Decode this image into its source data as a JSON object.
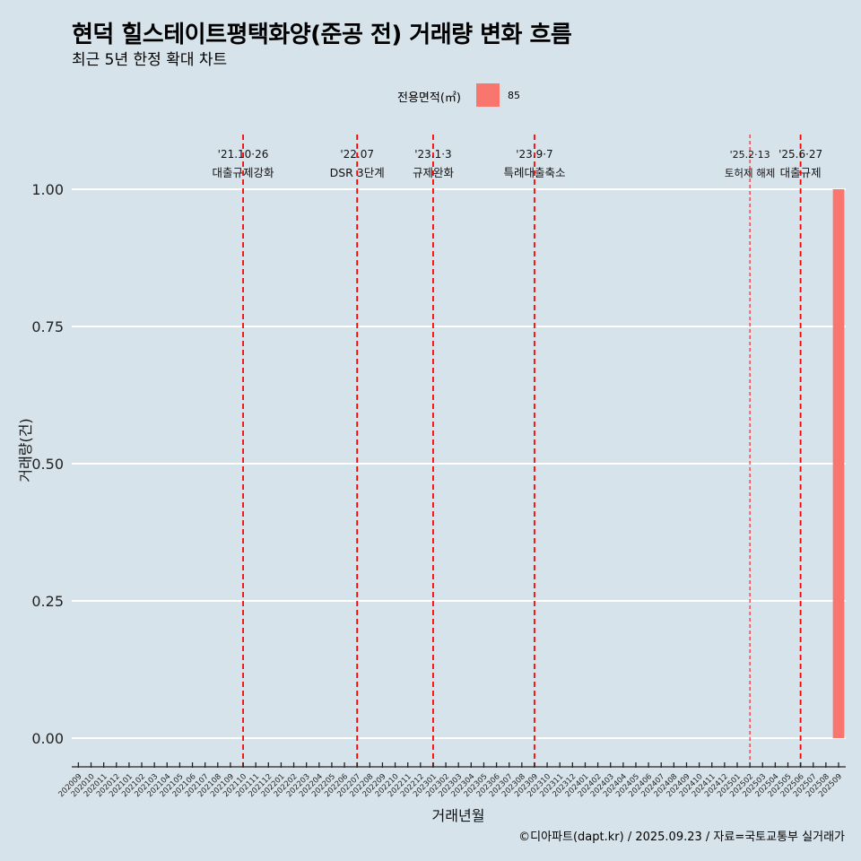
{
  "header": {
    "title": "현덕 힐스테이트평택화양(준공 전) 거래량 변화 흐름",
    "subtitle": "최근 5년 한정 확대 차트"
  },
  "legend": {
    "title": "전용면적(㎡)",
    "items": [
      {
        "label": "85",
        "color": "#f8766d"
      }
    ]
  },
  "caption": "©디아파트(dapt.kr) / 2025.09.23 / 자료=국토교통부 실거래가",
  "colors": {
    "background": "#d7e3ea",
    "grid": "#ffffff",
    "event_line": "#ff0000",
    "bar": "#f8766d"
  },
  "chart_data": {
    "type": "bar",
    "title": "현덕 힐스테이트평택화양(준공 전) 거래량 변화 흐름",
    "subtitle": "최근 5년 한정 확대 차트",
    "xlabel": "거래년월",
    "ylabel": "거래량(건)",
    "ylim": [
      0,
      1
    ],
    "yticks": [
      "0.00",
      "0.25",
      "0.50",
      "0.75",
      "1.00"
    ],
    "ytick_values": [
      0,
      0.25,
      0.5,
      0.75,
      1
    ],
    "categories": [
      "202009",
      "202010",
      "202011",
      "202012",
      "202101",
      "202102",
      "202103",
      "202104",
      "202105",
      "202106",
      "202107",
      "202108",
      "202109",
      "202110",
      "202111",
      "202112",
      "202201",
      "202202",
      "202203",
      "202204",
      "202205",
      "202206",
      "202207",
      "202208",
      "202209",
      "202210",
      "202211",
      "202212",
      "202301",
      "202302",
      "202303",
      "202304",
      "202305",
      "202306",
      "202307",
      "202308",
      "202309",
      "202310",
      "202311",
      "202312",
      "202401",
      "202402",
      "202403",
      "202404",
      "202405",
      "202406",
      "202407",
      "202408",
      "202409",
      "202410",
      "202411",
      "202412",
      "202501",
      "202502",
      "202503",
      "202504",
      "202505",
      "202506",
      "202507",
      "202508",
      "202509"
    ],
    "series": [
      {
        "name": "85",
        "color": "#f8766d",
        "points": [
          {
            "x": "202509",
            "value": 1
          }
        ]
      }
    ],
    "events": [
      {
        "month": "202110",
        "date": "'21.10·26",
        "label": "대출규제강화",
        "style": "thick"
      },
      {
        "month": "202207",
        "date": "'22.07",
        "label": "DSR 3단계",
        "style": "thick"
      },
      {
        "month": "202301",
        "date": "'23.1·3",
        "label": "규제완화",
        "style": "thick"
      },
      {
        "month": "202309",
        "date": "'23.9·7",
        "label": "특례대출축소",
        "style": "thick"
      },
      {
        "month": "202502",
        "date": "'25.2·13",
        "label": "토허제 해제",
        "style": "thin"
      },
      {
        "month": "202506",
        "date": "'25.6·27",
        "label": "대출규제",
        "style": "thick"
      }
    ],
    "legend_position": "top",
    "grid": true
  }
}
